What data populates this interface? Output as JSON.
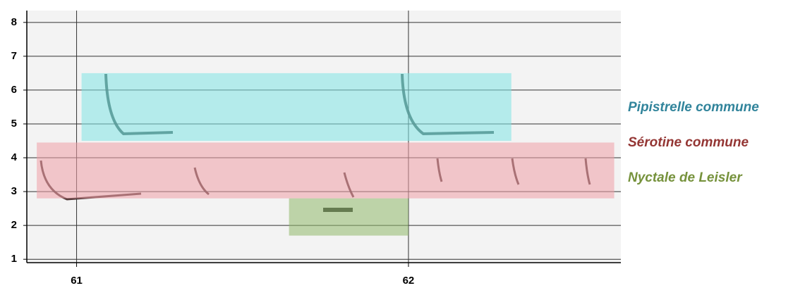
{
  "chart_data": {
    "type": "band",
    "xlim": [
      60.85,
      62.64
    ],
    "ylim": [
      0.9,
      8.35
    ],
    "xticks": [
      61,
      62
    ],
    "yticks": [
      1,
      2,
      3,
      4,
      5,
      6,
      7,
      8
    ],
    "grid": true,
    "series": [
      {
        "name": "Pipistrelle commune",
        "color": "#31849b",
        "fill": "#7fe3e3",
        "x": [
          61.015,
          62.31
        ],
        "y": [
          4.5,
          6.5
        ]
      },
      {
        "name": "Sérotine commune",
        "color": "#943634",
        "fill": "#ee9ea6",
        "x": [
          60.88,
          62.62
        ],
        "y": [
          2.8,
          4.45
        ]
      },
      {
        "name": "Nyctale de Leisler",
        "color": "#76923c",
        "fill": "#8fb86a",
        "x": [
          61.64,
          62.0
        ],
        "y": [
          1.7,
          2.8
        ]
      }
    ]
  }
}
